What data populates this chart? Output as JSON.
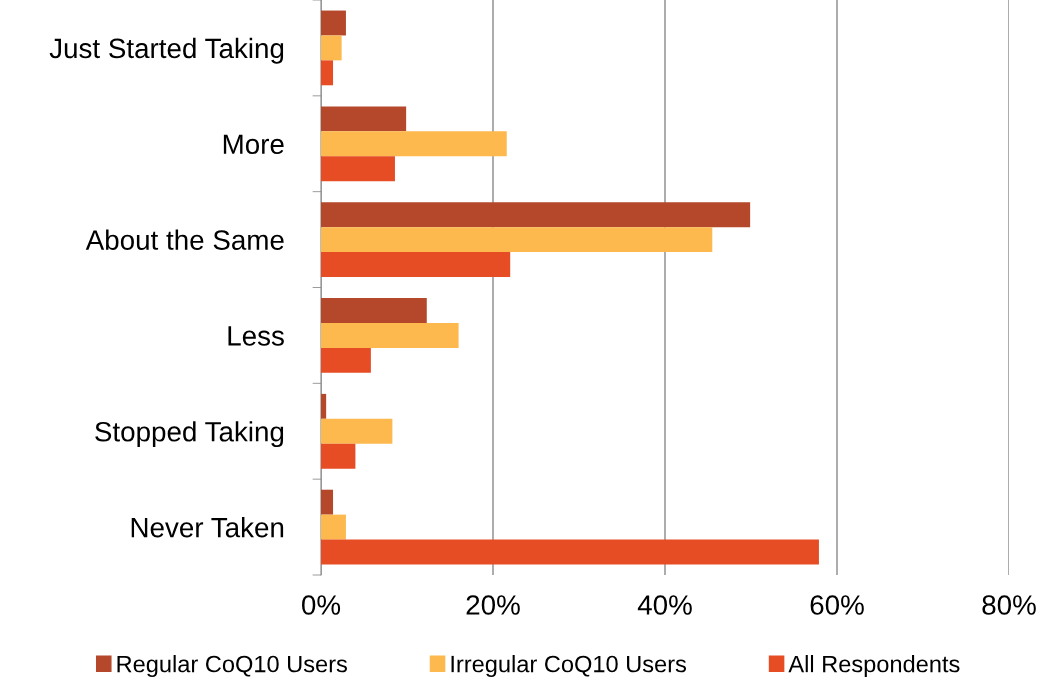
{
  "chart_data": {
    "type": "bar",
    "orientation": "horizontal",
    "categories": [
      "Just Started Taking",
      "More",
      "About the Same",
      "Less",
      "Stopped Taking",
      "Never Taken"
    ],
    "series": [
      {
        "name": "Regular CoQ10 Users",
        "color": "#b5472a",
        "values": [
          2.9,
          9.9,
          49.9,
          12.3,
          0.6,
          1.4
        ]
      },
      {
        "name": "Irregular CoQ10 Users",
        "color": "#fdb94e",
        "values": [
          2.4,
          21.6,
          45.5,
          16.0,
          8.3,
          2.9
        ]
      },
      {
        "name": "All Respondents",
        "color": "#e64d24",
        "values": [
          1.4,
          8.6,
          22.0,
          5.8,
          4.0,
          57.9
        ]
      }
    ],
    "xlim": [
      0,
      80
    ],
    "xticks": [
      {
        "value": 0,
        "label": "0%"
      },
      {
        "value": 20,
        "label": "20%"
      },
      {
        "value": 40,
        "label": "40%"
      },
      {
        "value": 60,
        "label": "60%"
      },
      {
        "value": 80,
        "label": "80%"
      }
    ],
    "grid": "x",
    "legend": "bottom"
  }
}
